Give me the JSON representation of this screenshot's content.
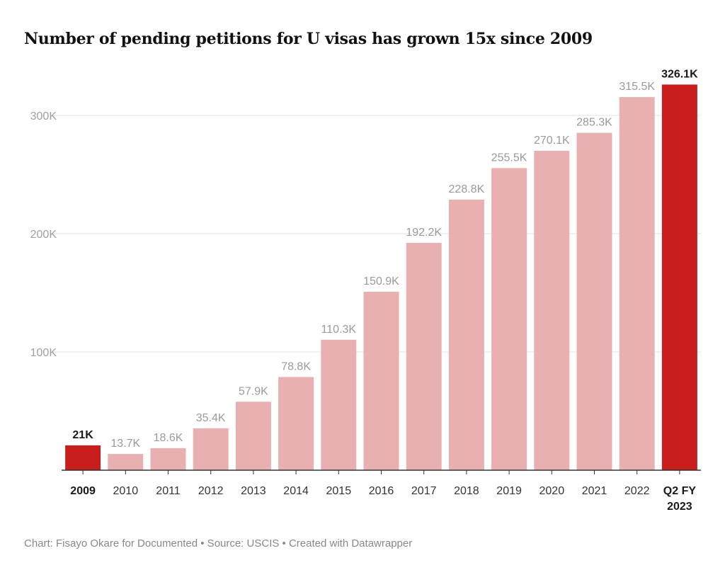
{
  "title": "Number of pending petitions for U visas has grown 15x since 2009",
  "footer": "Chart: Fisayo Okare for Documented • Source: USCIS • Created with Datawrapper",
  "colors": {
    "highlight": "#c71e1d",
    "bar": "#e8b0b0",
    "grid": "#e2e2e2",
    "axis_label": "#a0a0a0",
    "value_label": "#9a9a9a",
    "highlight_label": "#1a1a1a",
    "category_label": "#333333"
  },
  "chart_data": {
    "type": "bar",
    "title": "Number of pending petitions for U visas has grown 15x since 2009",
    "xlabel": "",
    "ylabel": "",
    "ylim": [
      0,
      330000
    ],
    "yticks": [
      100000,
      200000,
      300000
    ],
    "ytick_labels": [
      "100K",
      "200K",
      "300K"
    ],
    "grid": true,
    "categories": [
      "2009",
      "2010",
      "2011",
      "2012",
      "2013",
      "2014",
      "2015",
      "2016",
      "2017",
      "2018",
      "2019",
      "2020",
      "2021",
      "2022",
      "Q2 FY 2023"
    ],
    "category_lines": [
      [
        "2009"
      ],
      [
        "2010"
      ],
      [
        "2011"
      ],
      [
        "2012"
      ],
      [
        "2013"
      ],
      [
        "2014"
      ],
      [
        "2015"
      ],
      [
        "2016"
      ],
      [
        "2017"
      ],
      [
        "2018"
      ],
      [
        "2019"
      ],
      [
        "2020"
      ],
      [
        "2021"
      ],
      [
        "2022"
      ],
      [
        "Q2 FY",
        "2023"
      ]
    ],
    "values": [
      21000,
      13700,
      18600,
      35400,
      57900,
      78800,
      110300,
      150900,
      192200,
      228800,
      255500,
      270100,
      285300,
      315500,
      326100
    ],
    "value_labels": [
      "21K",
      "13.7K",
      "18.6K",
      "35.4K",
      "57.9K",
      "78.8K",
      "110.3K",
      "150.9K",
      "192.2K",
      "228.8K",
      "255.5K",
      "270.1K",
      "285.3K",
      "315.5K",
      "326.1K"
    ],
    "highlighted": [
      true,
      false,
      false,
      false,
      false,
      false,
      false,
      false,
      false,
      false,
      false,
      false,
      false,
      false,
      true
    ]
  }
}
